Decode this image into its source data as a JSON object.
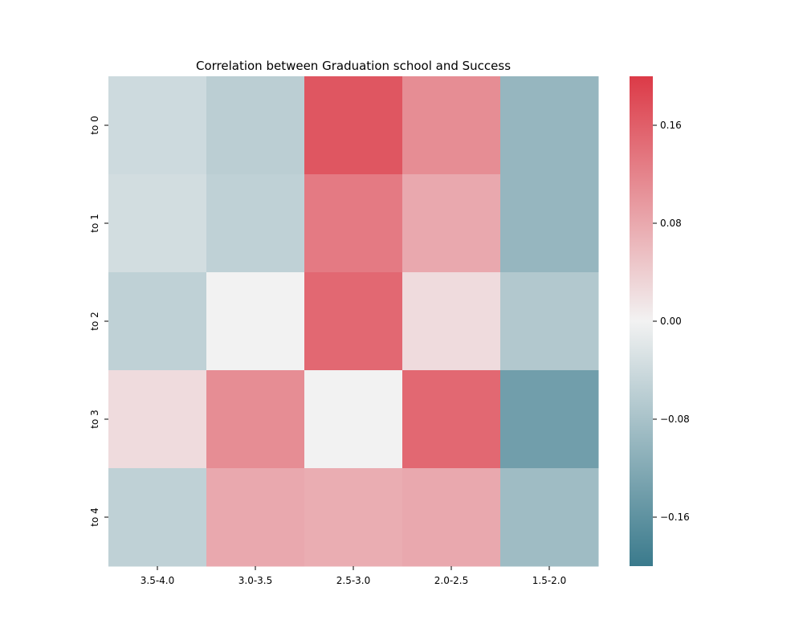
{
  "chart_data": {
    "type": "heatmap",
    "title": "Correlation between Graduation school and Success",
    "xlabel": "",
    "ylabel": "",
    "x_categories": [
      "3.5-4.0",
      "3.0-3.5",
      "2.5-3.0",
      "2.0-2.5",
      "1.5-2.0"
    ],
    "y_categories": [
      "to 0",
      "to 1",
      "to 2",
      "to 3",
      "to 4"
    ],
    "values": [
      [
        -0.04,
        -0.06,
        0.17,
        0.11,
        -0.1
      ],
      [
        -0.035,
        -0.055,
        0.13,
        0.08,
        -0.1
      ],
      [
        -0.055,
        0.0,
        0.15,
        0.025,
        -0.07
      ],
      [
        0.025,
        0.11,
        0.0,
        0.15,
        -0.14
      ],
      [
        -0.055,
        0.08,
        0.075,
        0.08,
        -0.09
      ]
    ],
    "colorbar": {
      "min": -0.2,
      "max": 0.2,
      "ticks": [
        0.16,
        0.08,
        0.0,
        -0.08,
        -0.16
      ],
      "tick_labels": [
        "0.16",
        "0.08",
        "0.00",
        "−0.08",
        "−0.16"
      ]
    },
    "colormap": {
      "negative": "#3a7a8c",
      "center": "#f2f2f2",
      "positive": "#dc3a47"
    },
    "grid": false,
    "legend": "colorbar-right"
  }
}
